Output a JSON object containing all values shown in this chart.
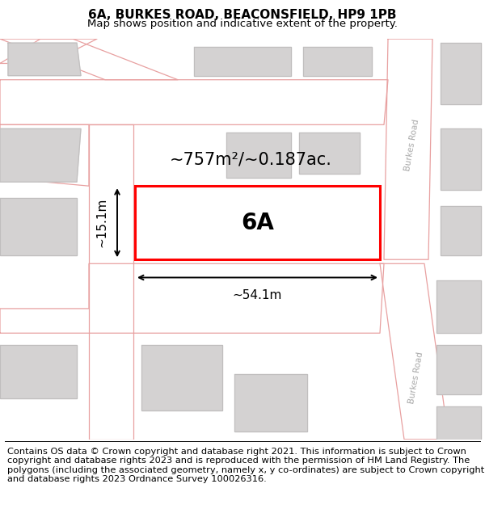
{
  "title_line1": "6A, BURKES ROAD, BEACONSFIELD, HP9 1PB",
  "title_line2": "Map shows position and indicative extent of the property.",
  "footer_text": "Contains OS data © Crown copyright and database right 2021. This information is subject to Crown copyright and database rights 2023 and is reproduced with the permission of HM Land Registry. The polygons (including the associated geometry, namely x, y co-ordinates) are subject to Crown copyright and database rights 2023 Ordnance Survey 100026316.",
  "bg_color": "#f0eeee",
  "map_bg_color": "#eeecec",
  "road_color": "#ffffff",
  "road_outline_color": "#e8a0a0",
  "building_color": "#d4d2d2",
  "building_outline_color": "#c0bebe",
  "plot_color": "#ffffff",
  "plot_outline_color": "#ff0000",
  "plot_label": "6A",
  "area_label": "~757m²/~0.187ac.",
  "width_label": "~54.1m",
  "height_label": "~15.1m",
  "title_fontsize": 11,
  "subtitle_fontsize": 9.5,
  "plot_label_fontsize": 20,
  "area_fontsize": 15,
  "dim_fontsize": 11,
  "footer_fontsize": 8.2,
  "burkes_road_label_color": "#aaaaaa",
  "burkes_road_label_size": 7.5
}
